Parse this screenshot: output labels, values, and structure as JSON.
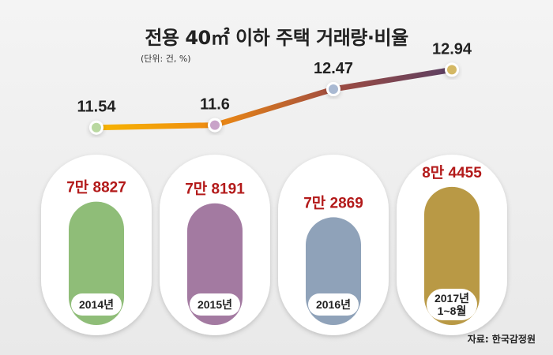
{
  "title": "전용 40㎡ 이하 주택 거래량·비율",
  "unit_note": "(단위: 건, %)",
  "source": "자료: 한국감정원",
  "colors": {
    "pill_colors": [
      "#8fbd78",
      "#a37aa1",
      "#8fa2b9",
      "#b99945"
    ],
    "marker_colors": [
      "#b9d8a0",
      "#c9a3c9",
      "#a9b9d2",
      "#d4b864"
    ],
    "volume_label": "#b31a1a",
    "line_gradient": [
      "#f7b500",
      "#ee8a12",
      "#a04c40",
      "#5b3f63"
    ]
  },
  "chart_data": {
    "type": "bar",
    "categories": [
      "2014년",
      "2015년",
      "2016년",
      "2017년\n1~8월"
    ],
    "series": [
      {
        "values": [
          78827,
          78191,
          72869,
          84455
        ],
        "labels": [
          "7만 8827",
          "7만 8191",
          "7만 2869",
          "8만 4455"
        ]
      },
      {
        "type": "line",
        "values": [
          11.54,
          11.6,
          12.47,
          12.94
        ]
      }
    ]
  }
}
